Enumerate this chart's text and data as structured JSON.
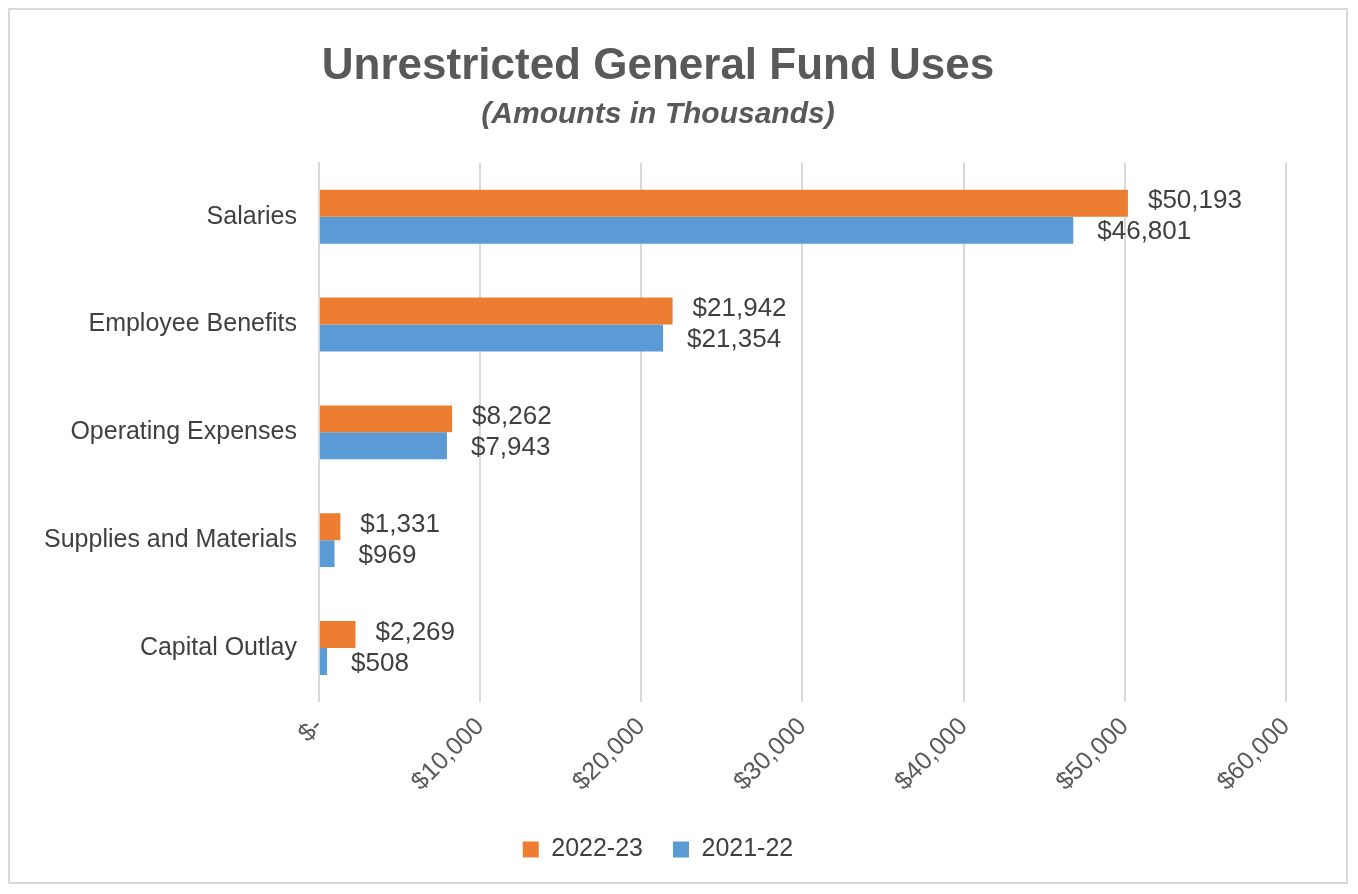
{
  "chart_data": {
    "type": "bar",
    "orientation": "horizontal",
    "title": "Unrestricted General Fund Uses",
    "subtitle": "(Amounts in Thousands)",
    "categories": [
      "Salaries",
      "Employee Benefits",
      "Operating Expenses",
      "Supplies and Materials",
      "Capital Outlay"
    ],
    "series": [
      {
        "name": "2022-23",
        "color": "#ed7d31",
        "values": [
          50193,
          21942,
          8262,
          1331,
          2269
        ],
        "value_labels": [
          "$50,193",
          "$21,942",
          "$8,262",
          "$1,331",
          "$2,269"
        ]
      },
      {
        "name": "2021-22",
        "color": "#5b9bd5",
        "values": [
          46801,
          21354,
          7943,
          969,
          508
        ],
        "value_labels": [
          "$46,801",
          "$21,354",
          "$7,943",
          "$969",
          "$508"
        ]
      }
    ],
    "xlim": [
      0,
      60000
    ],
    "xticks": [
      {
        "value": 0,
        "label": "$-"
      },
      {
        "value": 10000,
        "label": "$10,000"
      },
      {
        "value": 20000,
        "label": "$20,000"
      },
      {
        "value": 30000,
        "label": "$30,000"
      },
      {
        "value": 40000,
        "label": "$40,000"
      },
      {
        "value": 50000,
        "label": "$50,000"
      },
      {
        "value": 60000,
        "label": "$60,000"
      }
    ],
    "grid": "x",
    "legend": "bottom"
  }
}
